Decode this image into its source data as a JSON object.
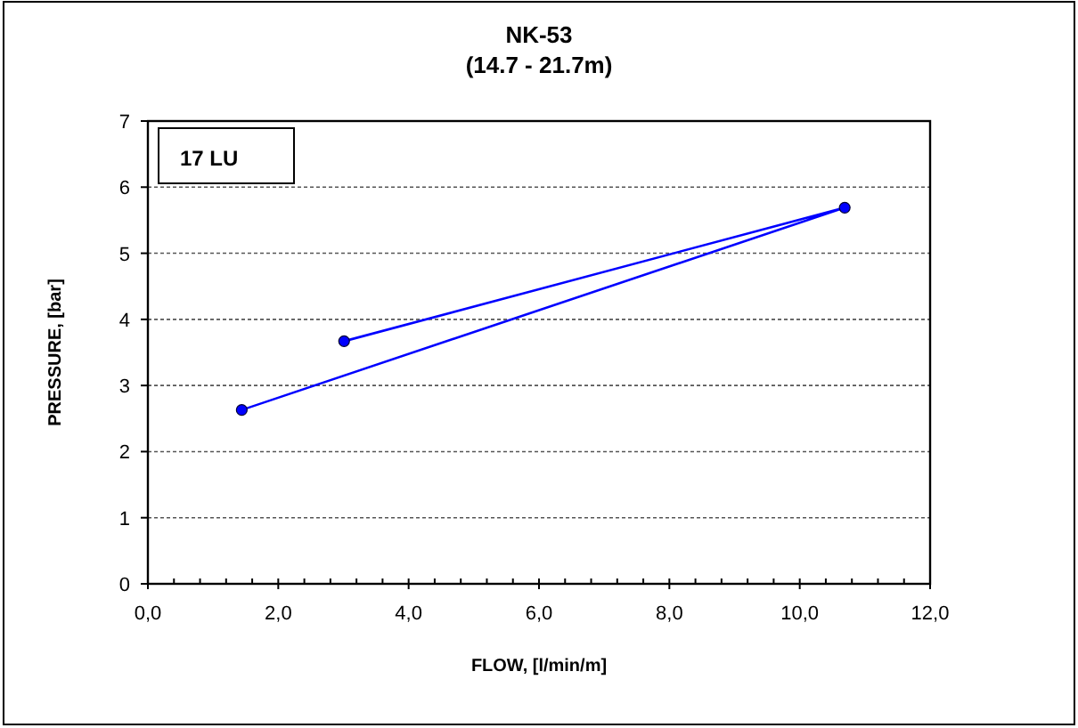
{
  "chart_data": {
    "type": "line",
    "title": "NK-53",
    "subtitle": "(14.7 - 21.7m)",
    "xlabel": "FLOW, [l/min/m]",
    "ylabel": "PRESSURE, [bar]",
    "annotations": [
      "17 LU"
    ],
    "x": [
      1.44,
      10.69,
      3.01
    ],
    "series": [
      {
        "color": "#0000ff",
        "values": [
          2.63,
          5.69,
          3.67
        ]
      }
    ],
    "xlim": [
      0,
      12
    ],
    "xticks": [
      {
        "value": 0,
        "label": "0,0"
      },
      {
        "value": 2,
        "label": "2,0"
      },
      {
        "value": 4,
        "label": "4,0"
      },
      {
        "value": 6,
        "label": "6,0"
      },
      {
        "value": 8,
        "label": "8,0"
      },
      {
        "value": 10,
        "label": "10,0"
      },
      {
        "value": 12,
        "label": "12,0"
      }
    ],
    "ylim": [
      0,
      7
    ],
    "yticks": [
      0,
      1,
      2,
      3,
      4,
      5,
      6,
      7
    ],
    "grid": "y",
    "marker": "circle",
    "line_style": "solid"
  }
}
